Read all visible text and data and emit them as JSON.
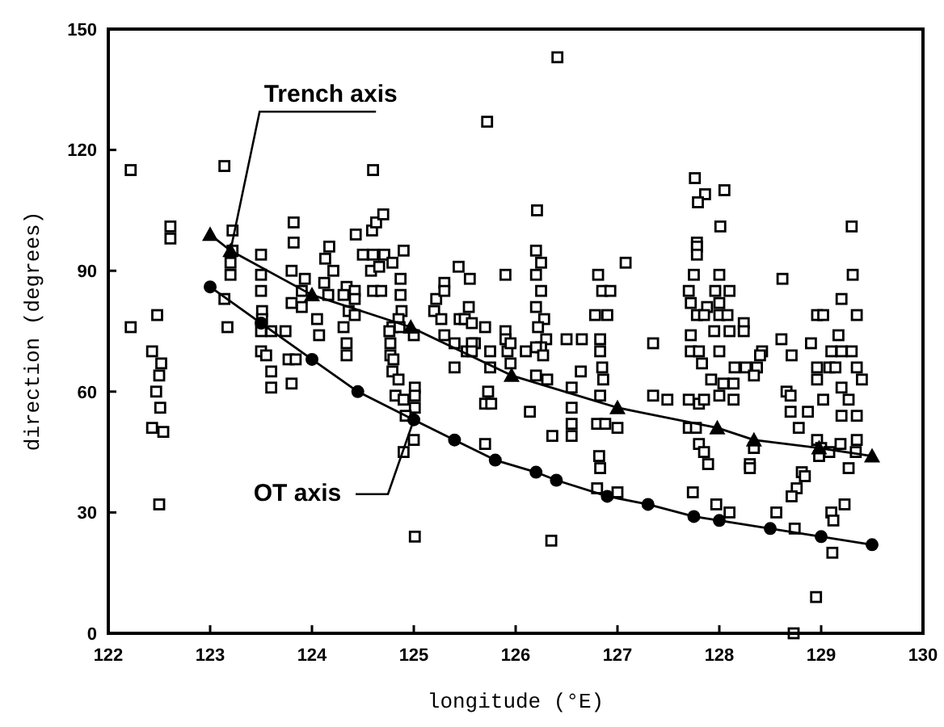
{
  "chart_data": {
    "type": "scatter",
    "xlabel": "longitude (°E)",
    "ylabel": "direction (degrees)",
    "xlim": [
      122,
      130
    ],
    "xticks": [
      122,
      123,
      124,
      125,
      126,
      127,
      128,
      129,
      130
    ],
    "ylim": [
      0,
      150
    ],
    "yticks": [
      0,
      30,
      60,
      90,
      120,
      150
    ],
    "grid": false,
    "series": [
      {
        "color": "#000000",
        "marker": "square",
        "x": [
          122.22,
          122.61,
          122.61,
          122.22,
          122.48,
          122.43,
          122.52,
          122.5,
          122.47,
          122.51,
          122.43,
          122.54,
          122.5,
          123.14,
          124.6,
          125.72,
          126.41,
          125.01,
          126.35,
          128.95,
          128.73,
          123.22,
          123.22,
          123.2,
          123.2,
          123.14,
          123.17,
          123.5,
          123.5,
          123.5,
          123.51,
          123.51,
          123.5,
          123.6,
          123.74,
          123.5,
          123.55,
          123.6,
          123.6,
          123.8,
          123.77,
          123.84,
          123.82,
          123.82,
          123.8,
          123.93,
          123.9,
          123.8,
          123.9,
          124.05,
          124.07,
          124.17,
          124.13,
          124.21,
          124.12,
          124.16,
          124.34,
          124.31,
          124.42,
          124.42,
          124.36,
          124.31,
          124.34,
          124.34,
          124.42,
          124.43,
          124.59,
          124.63,
          124.7,
          124.5,
          124.6,
          124.71,
          124.58,
          124.66,
          124.79,
          124.9,
          124.87,
          124.87,
          124.88,
          124.85,
          124.79,
          124.86,
          124.6,
          124.68,
          124.76,
          124.77,
          124.77,
          124.8,
          124.79,
          124.85,
          124.82,
          124.9,
          125.01,
          125.01,
          125.01,
          124.9,
          125.0,
          124.92,
          125.22,
          125.3,
          125.3,
          125.44,
          125.55,
          125.54,
          125.45,
          125.5,
          125.2,
          125.0,
          125.3,
          125.4,
          125.52,
          125.6,
          125.27,
          125.4,
          125.57,
          125.57,
          125.57,
          125.7,
          125.75,
          125.75,
          125.73,
          125.7,
          125.7,
          125.76,
          125.9,
          125.9,
          125.9,
          125.92,
          125.95,
          125.95,
          126.21,
          126.2,
          126.25,
          126.2,
          126.25,
          126.2,
          126.28,
          126.22,
          126.3,
          126.25,
          126.1,
          126.2,
          126.27,
          126.2,
          126.31,
          126.14,
          126.36,
          126.55,
          126.55,
          126.55,
          126.55,
          126.64,
          126.65,
          126.5,
          126.81,
          126.85,
          126.93,
          126.78,
          126.9,
          127.08,
          126.83,
          126.83,
          126.85,
          126.86,
          126.83,
          126.8,
          126.88,
          126.82,
          126.83,
          126.8,
          127.0,
          127.0,
          127.35,
          127.35,
          127.49,
          127.76,
          127.86,
          127.79,
          128.05,
          128.01,
          127.78,
          127.78,
          127.78,
          127.75,
          128.0,
          127.7,
          127.96,
          128.1,
          127.72,
          128.0,
          127.88,
          127.78,
          127.85,
          128.0,
          128.08,
          128.24,
          128.24,
          128.1,
          127.95,
          127.72,
          127.72,
          127.8,
          128.0,
          127.83,
          127.92,
          128.04,
          128.14,
          127.7,
          127.8,
          127.85,
          128.0,
          128.14,
          127.7,
          127.77,
          127.8,
          127.85,
          127.89,
          127.74,
          127.97,
          128.1,
          128.15,
          128.26,
          128.37,
          128.42,
          128.34,
          128.34,
          128.3,
          128.3,
          128.4,
          128.62,
          128.61,
          128.71,
          128.66,
          128.7,
          128.7,
          128.78,
          128.87,
          128.81,
          128.84,
          128.76,
          128.71,
          128.56,
          128.74,
          129.3,
          129.31,
          129.2,
          128.96,
          129.02,
          129.35,
          129.17,
          129.1,
          129.2,
          129.3,
          128.9,
          129.08,
          128.96,
          128.96,
          129.14,
          129.35,
          129.4,
          129.2,
          129.27,
          129.02,
          129.2,
          129.35,
          128.96,
          129.0,
          129.08,
          129.19,
          129.35,
          129.34,
          128.98,
          129.27,
          129.23,
          129.1,
          129.12,
          129.11
        ],
        "values": [
          115,
          101,
          98,
          76,
          79,
          70,
          67,
          64,
          60,
          56,
          51,
          50,
          32,
          116,
          115,
          127,
          143,
          24,
          23,
          9,
          0,
          100,
          95,
          92,
          89,
          83,
          76,
          94,
          89,
          85,
          80,
          78,
          75,
          75,
          75,
          70,
          69,
          65,
          61,
          62,
          68,
          68,
          102,
          97,
          90,
          88,
          85,
          82,
          81,
          78,
          74,
          96,
          93,
          90,
          87,
          84,
          86,
          84,
          85,
          83,
          80,
          76,
          72,
          69,
          79,
          99,
          100,
          102,
          104,
          94,
          94,
          94,
          90,
          91,
          92,
          95,
          88,
          84,
          80,
          78,
          76,
          76,
          85,
          85,
          75,
          72,
          69,
          68,
          65,
          63,
          59,
          58,
          61,
          59,
          56,
          45,
          48,
          54,
          83,
          87,
          85,
          91,
          88,
          81,
          78,
          78,
          80,
          74,
          74,
          72,
          70,
          72,
          78,
          66,
          77,
          72,
          70,
          76,
          70,
          66,
          60,
          57,
          47,
          57,
          89,
          75,
          73,
          70,
          72,
          67,
          105,
          95,
          92,
          89,
          85,
          81,
          78,
          76,
          73,
          71,
          70,
          71,
          69,
          64,
          63,
          55,
          49,
          49,
          52,
          56,
          61,
          65,
          73,
          73,
          89,
          85,
          85,
          79,
          79,
          92,
          73,
          70,
          66,
          63,
          59,
          52,
          52,
          44,
          41,
          36,
          35,
          51,
          72,
          59,
          58,
          113,
          109,
          107,
          110,
          101,
          97,
          96,
          94,
          89,
          89,
          85,
          85,
          85,
          82,
          82,
          81,
          79,
          79,
          79,
          79,
          77,
          75,
          75,
          75,
          74,
          70,
          70,
          70,
          67,
          63,
          62,
          62,
          58,
          57,
          58,
          59,
          58,
          51,
          51,
          47,
          45,
          42,
          35,
          32,
          30,
          66,
          66,
          66,
          70,
          64,
          46,
          42,
          41,
          69,
          88,
          73,
          69,
          60,
          59,
          55,
          51,
          55,
          40,
          39,
          36,
          34,
          30,
          26,
          101,
          89,
          83,
          79,
          79,
          79,
          74,
          70,
          70,
          70,
          72,
          66,
          66,
          63,
          66,
          66,
          63,
          61,
          58,
          58,
          54,
          54,
          48,
          46,
          45,
          47,
          48,
          45,
          44,
          41,
          32,
          30,
          28,
          20
        ]
      },
      {
        "type": "line",
        "name": "Trench axis",
        "color": "#000000",
        "marker": "triangle",
        "x": [
          123.0,
          123.2,
          124.0,
          124.97,
          125.96,
          127.0,
          127.98,
          128.34,
          128.98,
          129.5
        ],
        "values": [
          99,
          95,
          84,
          76,
          64,
          56,
          51,
          48,
          46,
          44
        ]
      },
      {
        "type": "line",
        "name": "OT axis",
        "color": "#000000",
        "marker": "circle",
        "x": [
          123.0,
          123.5,
          124.0,
          124.45,
          125.0,
          125.4,
          125.8,
          126.2,
          126.4,
          126.9,
          127.3,
          127.75,
          128.0,
          128.5,
          129.0,
          129.5
        ],
        "values": [
          86,
          77,
          68,
          60,
          53,
          48,
          43,
          40,
          38,
          34,
          32,
          29,
          28,
          26,
          24,
          22
        ]
      }
    ]
  }
}
